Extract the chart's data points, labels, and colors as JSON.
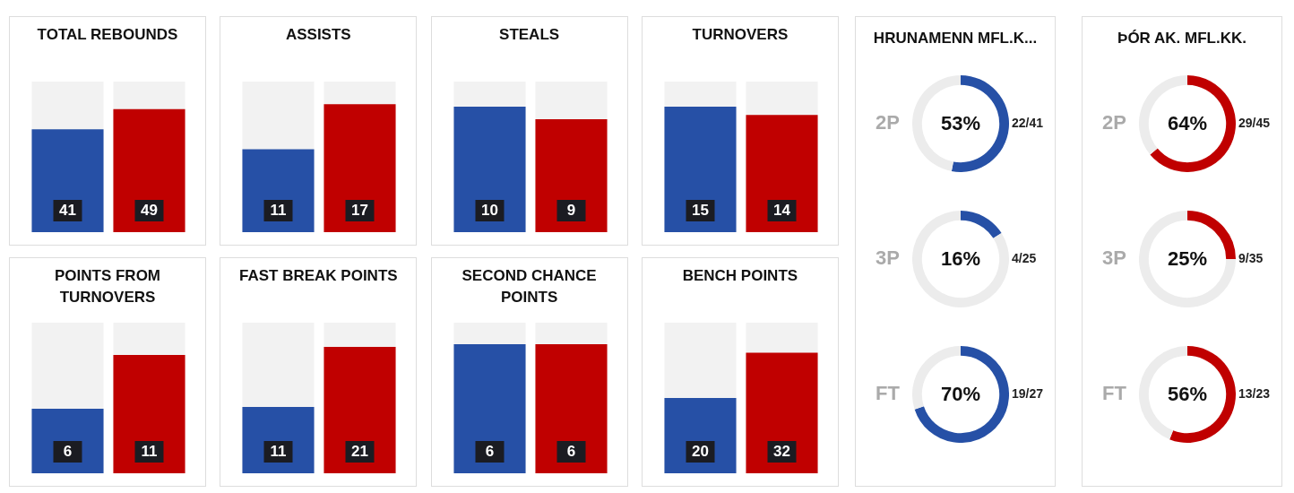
{
  "chart_data": [
    {
      "type": "bar",
      "title": "TOTAL REBOUNDS",
      "categories": [
        null,
        null
      ],
      "values": [
        41,
        49
      ],
      "colors": [
        "#2650a6",
        "#c00000"
      ],
      "data_labels": true
    },
    {
      "type": "bar",
      "title": "ASSISTS",
      "categories": [
        null,
        null
      ],
      "values": [
        11,
        17
      ],
      "colors": [
        "#2650a6",
        "#c00000"
      ],
      "data_labels": true
    },
    {
      "type": "bar",
      "title": "STEALS",
      "categories": [
        null,
        null
      ],
      "values": [
        10,
        9
      ],
      "colors": [
        "#2650a6",
        "#c00000"
      ],
      "data_labels": true
    },
    {
      "type": "bar",
      "title": "TURNOVERS",
      "categories": [
        null,
        null
      ],
      "values": [
        15,
        14
      ],
      "colors": [
        "#2650a6",
        "#c00000"
      ],
      "data_labels": true
    },
    {
      "type": "bar",
      "title": "POINTS FROM TURNOVERS",
      "categories": [
        null,
        null
      ],
      "values": [
        6,
        11
      ],
      "colors": [
        "#2650a6",
        "#c00000"
      ],
      "data_labels": true
    },
    {
      "type": "bar",
      "title": "FAST BREAK POINTS",
      "categories": [
        null,
        null
      ],
      "values": [
        11,
        21
      ],
      "colors": [
        "#2650a6",
        "#c00000"
      ],
      "data_labels": true
    },
    {
      "type": "bar",
      "title": "SECOND CHANCE POINTS",
      "categories": [
        null,
        null
      ],
      "values": [
        6,
        6
      ],
      "colors": [
        "#2650a6",
        "#c00000"
      ],
      "data_labels": true
    },
    {
      "type": "bar",
      "title": "BENCH POINTS",
      "categories": [
        null,
        null
      ],
      "values": [
        20,
        32
      ],
      "colors": [
        "#2650a6",
        "#c00000"
      ],
      "data_labels": true
    },
    {
      "type": "donut",
      "title": "HRUNAMENN MFL.K...",
      "ylabel": "2P",
      "categories": [
        null,
        null
      ],
      "values": [
        53,
        47
      ],
      "colors": [
        "#2650a6",
        "#ececec"
      ],
      "value_labels": [
        "53%",
        null
      ],
      "annotations": [
        "22/41"
      ]
    },
    {
      "type": "donut",
      "ylabel": "3P",
      "categories": [
        null,
        null
      ],
      "values": [
        16,
        84
      ],
      "colors": [
        "#2650a6",
        "#ececec"
      ],
      "value_labels": [
        "16%",
        null
      ],
      "annotations": [
        "4/25"
      ]
    },
    {
      "type": "donut",
      "ylabel": "FT",
      "categories": [
        null,
        null
      ],
      "values": [
        70,
        30
      ],
      "colors": [
        "#2650a6",
        "#ececec"
      ],
      "value_labels": [
        "70%",
        null
      ],
      "annotations": [
        "19/27"
      ]
    },
    {
      "type": "donut",
      "title": "ÞÓR AK. MFL.KK.",
      "ylabel": "2P",
      "categories": [
        null,
        null
      ],
      "values": [
        64,
        36
      ],
      "colors": [
        "#c00000",
        "#ececec"
      ],
      "value_labels": [
        "64%",
        null
      ],
      "annotations": [
        "29/45"
      ]
    },
    {
      "type": "donut",
      "ylabel": "3P",
      "categories": [
        null,
        null
      ],
      "values": [
        25,
        75
      ],
      "colors": [
        "#c00000",
        "#ececec"
      ],
      "value_labels": [
        "25%",
        null
      ],
      "annotations": [
        "9/35"
      ]
    },
    {
      "type": "donut",
      "ylabel": "FT",
      "categories": [
        null,
        null
      ],
      "values": [
        56,
        44
      ],
      "colors": [
        "#c00000",
        "#ececec"
      ],
      "value_labels": [
        "56%",
        null
      ],
      "annotations": [
        "13/23"
      ]
    }
  ]
}
